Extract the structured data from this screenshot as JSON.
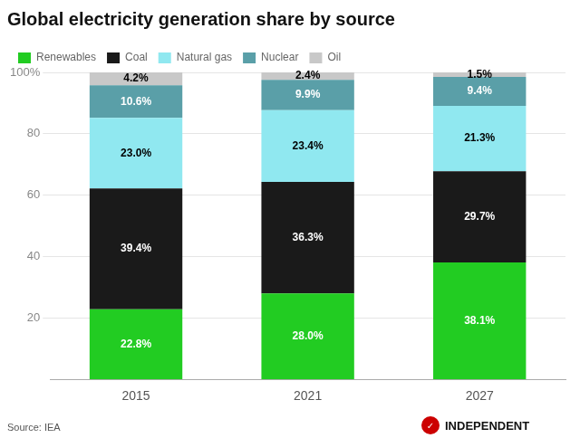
{
  "chart_data": {
    "type": "bar",
    "title": "Global electricity generation share by source",
    "categories": [
      "2015",
      "2021",
      "2027"
    ],
    "series": [
      {
        "name": "Renewables",
        "color": "#22cc22",
        "values": [
          22.8,
          28.0,
          38.1
        ],
        "value_labels": [
          "22.8%",
          "28.0%",
          "38.1%"
        ]
      },
      {
        "name": "Coal",
        "color": "#1a1a1a",
        "values": [
          39.4,
          36.3,
          29.7
        ],
        "value_labels": [
          "39.4%",
          "36.3%",
          "29.7%"
        ]
      },
      {
        "name": "Natural gas",
        "color": "#90e8f0",
        "values": [
          23.0,
          23.4,
          21.3
        ],
        "value_labels": [
          "23.0%",
          "23.4%",
          "21.3%"
        ]
      },
      {
        "name": "Nuclear",
        "color": "#5a9fa8",
        "values": [
          10.6,
          9.9,
          9.4
        ],
        "value_labels": [
          "10.6%",
          "9.9%",
          "9.4%"
        ]
      },
      {
        "name": "Oil",
        "color": "#c8c8c8",
        "values": [
          4.2,
          2.4,
          1.5
        ],
        "value_labels": [
          "4.2%",
          "2.4%",
          "1.5%"
        ]
      }
    ],
    "stacked": true,
    "data_labels": true,
    "ylim": [
      0,
      100
    ],
    "yticks": [
      20,
      40,
      60,
      80,
      {
        "value": 100,
        "label": "100%"
      }
    ],
    "grid": true,
    "legend": "upper left",
    "annotations": [
      "Source: IEA",
      "✓",
      "INDEPENDENT"
    ]
  }
}
